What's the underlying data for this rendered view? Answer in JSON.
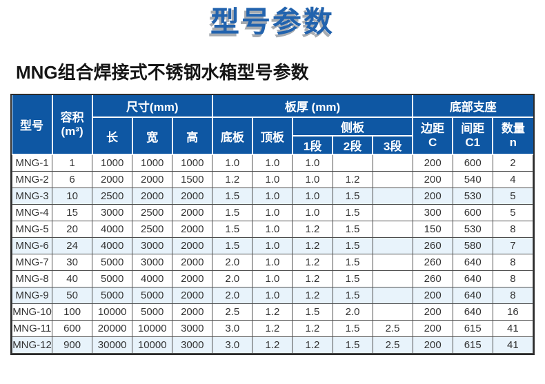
{
  "page": {
    "title": "型号参数",
    "subtitle": "MNG组合焊接式不锈钢水箱型号参数"
  },
  "table": {
    "header": {
      "model": "型号",
      "volume": [
        "容积",
        "(m³)"
      ],
      "size_group": "尺寸(mm)",
      "length": "长",
      "width": "宽",
      "height": "高",
      "thickness_group": "板厚 (mm)",
      "bottom_plate": "底板",
      "top_plate": "顶板",
      "side_plate_group": "侧板",
      "seg1": "1段",
      "seg2": "2段",
      "seg3": "3段",
      "support_group": "底部支座",
      "edge": [
        "边距",
        "C"
      ],
      "spacing": [
        "间距",
        "C1"
      ],
      "qty": [
        "数量",
        "n"
      ]
    },
    "column_keys": [
      "model",
      "volume",
      "length",
      "width",
      "height",
      "bottom-plate",
      "top-plate",
      "side-seg1",
      "side-seg2",
      "side-seg3",
      "edge-c",
      "spacing-c1",
      "qty-n"
    ],
    "rows": [
      [
        "MNG-1",
        "1",
        "1000",
        "1000",
        "1000",
        "1.0",
        "1.0",
        "1.0",
        "",
        "",
        "200",
        "600",
        "2"
      ],
      [
        "MNG-2",
        "6",
        "2000",
        "2000",
        "1500",
        "1.2",
        "1.0",
        "1.0",
        "1.2",
        "",
        "200",
        "540",
        "4"
      ],
      [
        "MNG-3",
        "10",
        "2500",
        "2000",
        "2000",
        "1.5",
        "1.0",
        "1.0",
        "1.5",
        "",
        "200",
        "530",
        "5"
      ],
      [
        "MNG-4",
        "15",
        "3000",
        "2500",
        "2000",
        "1.5",
        "1.0",
        "1.0",
        "1.5",
        "",
        "300",
        "600",
        "5"
      ],
      [
        "MNG-5",
        "20",
        "4000",
        "2500",
        "2000",
        "1.5",
        "1.0",
        "1.2",
        "1.5",
        "",
        "150",
        "530",
        "8"
      ],
      [
        "MNG-6",
        "24",
        "4000",
        "3000",
        "2000",
        "1.5",
        "1.0",
        "1.2",
        "1.5",
        "",
        "260",
        "580",
        "7"
      ],
      [
        "MNG-7",
        "30",
        "5000",
        "3000",
        "2000",
        "2.0",
        "1.0",
        "1.2",
        "1.5",
        "",
        "260",
        "640",
        "8"
      ],
      [
        "MNG-8",
        "40",
        "5000",
        "4000",
        "2000",
        "2.0",
        "1.0",
        "1.2",
        "1.5",
        "",
        "260",
        "640",
        "8"
      ],
      [
        "MNG-9",
        "50",
        "5000",
        "5000",
        "2000",
        "2.0",
        "1.0",
        "1.2",
        "1.5",
        "",
        "200",
        "640",
        "8"
      ],
      [
        "MNG-10",
        "100",
        "10000",
        "5000",
        "2000",
        "2.5",
        "1.2",
        "1.5",
        "2.0",
        "",
        "200",
        "640",
        "16"
      ],
      [
        "MNG-11",
        "600",
        "20000",
        "10000",
        "3000",
        "3.0",
        "1.2",
        "1.2",
        "1.5",
        "2.5",
        "200",
        "615",
        "41"
      ],
      [
        "MNG-12",
        "900",
        "30000",
        "10000",
        "3000",
        "3.0",
        "1.2",
        "1.2",
        "1.5",
        "2.5",
        "200",
        "615",
        "41"
      ]
    ],
    "highlighted_rows": [
      3,
      6,
      9,
      12
    ]
  },
  "colors": {
    "title_text": "#2263ae",
    "title_shadow": "#a6abb1",
    "header_bg": "#0e57a3",
    "header_text": "#ffffff",
    "row_highlight_bg": "#e8f3fb",
    "grid_border": "#4d4d4d",
    "outer_border": "#2b2b2b",
    "body_text": "#333333",
    "page_bg": "#ffffff"
  }
}
